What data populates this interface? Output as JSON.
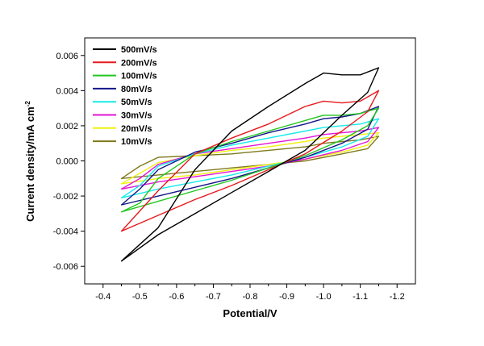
{
  "chart_data": {
    "type": "line",
    "title": "",
    "xlabel": "Potential/V",
    "ylabel": "Current density/mA cm",
    "ylabel_superscript": "-2",
    "xlim": [
      -0.35,
      -1.25
    ],
    "ylim": [
      -0.007,
      0.007
    ],
    "x_ticks": [
      -0.4,
      -0.5,
      -0.6,
      -0.7,
      -0.8,
      -0.9,
      -1.0,
      -1.1,
      -1.2
    ],
    "x_tick_labels": [
      "-0.4",
      "-0.5",
      "-0.6",
      "-0.7",
      "-0.8",
      "-0.9",
      "-1.0",
      "-1.1",
      "-1.2"
    ],
    "y_ticks": [
      -0.006,
      -0.004,
      -0.002,
      0.0,
      0.002,
      0.004,
      0.006
    ],
    "y_tick_labels": [
      "-0.006",
      "-0.004",
      "-0.002",
      "0.000",
      "0.002",
      "0.004",
      "0.006"
    ],
    "grid": false,
    "legend_position": "top-left",
    "series": [
      {
        "name": "500mV/s",
        "color": "#000000",
        "upper": [
          [
            -0.45,
            -0.0057
          ],
          [
            -0.55,
            -0.0038
          ],
          [
            -0.65,
            -0.0005
          ],
          [
            -0.75,
            0.0017
          ],
          [
            -0.85,
            0.0031
          ],
          [
            -0.95,
            0.0044
          ],
          [
            -1.0,
            0.005
          ],
          [
            -1.05,
            0.0049
          ],
          [
            -1.1,
            0.0049
          ],
          [
            -1.15,
            0.0053
          ]
        ],
        "lower": [
          [
            -1.15,
            0.0053
          ],
          [
            -1.12,
            0.0039
          ],
          [
            -1.05,
            0.0026
          ],
          [
            -0.95,
            0.0006
          ],
          [
            -0.85,
            -0.0006
          ],
          [
            -0.75,
            -0.0018
          ],
          [
            -0.65,
            -0.003
          ],
          [
            -0.55,
            -0.0042
          ],
          [
            -0.45,
            -0.0057
          ]
        ]
      },
      {
        "name": "200mV/s",
        "color": "#e8191d",
        "upper": [
          [
            -0.45,
            -0.004
          ],
          [
            -0.55,
            -0.0017
          ],
          [
            -0.65,
            0.0004
          ],
          [
            -0.75,
            0.0013
          ],
          [
            -0.85,
            0.0021
          ],
          [
            -0.95,
            0.0031
          ],
          [
            -1.0,
            0.0034
          ],
          [
            -1.05,
            0.0033
          ],
          [
            -1.1,
            0.0034
          ],
          [
            -1.15,
            0.004
          ]
        ],
        "lower": [
          [
            -1.15,
            0.004
          ],
          [
            -1.12,
            0.0028
          ],
          [
            -1.05,
            0.0017
          ],
          [
            -0.95,
            0.0004
          ],
          [
            -0.85,
            -0.0005
          ],
          [
            -0.75,
            -0.0014
          ],
          [
            -0.65,
            -0.0022
          ],
          [
            -0.55,
            -0.0031
          ],
          [
            -0.45,
            -0.004
          ]
        ]
      },
      {
        "name": "100mV/s",
        "color": "#22c71e",
        "upper": [
          [
            -0.45,
            -0.0029
          ],
          [
            -0.5,
            -0.0024
          ],
          [
            -0.55,
            -0.001
          ],
          [
            -0.65,
            0.0004
          ],
          [
            -0.75,
            0.0011
          ],
          [
            -0.85,
            0.0017
          ],
          [
            -0.95,
            0.0023
          ],
          [
            -1.0,
            0.0026
          ],
          [
            -1.05,
            0.0026
          ],
          [
            -1.1,
            0.0027
          ],
          [
            -1.15,
            0.003
          ]
        ],
        "lower": [
          [
            -1.15,
            0.003
          ],
          [
            -1.12,
            0.002
          ],
          [
            -1.05,
            0.0012
          ],
          [
            -0.95,
            0.0003
          ],
          [
            -0.85,
            -0.0004
          ],
          [
            -0.75,
            -0.0011
          ],
          [
            -0.65,
            -0.0017
          ],
          [
            -0.55,
            -0.0023
          ],
          [
            -0.45,
            -0.0029
          ]
        ]
      },
      {
        "name": "80mV/s",
        "color": "#13168a",
        "upper": [
          [
            -0.45,
            -0.0025
          ],
          [
            -0.5,
            -0.0016
          ],
          [
            -0.55,
            -0.0005
          ],
          [
            -0.65,
            0.0005
          ],
          [
            -0.75,
            0.001
          ],
          [
            -0.85,
            0.0016
          ],
          [
            -0.95,
            0.0021
          ],
          [
            -1.0,
            0.0024
          ],
          [
            -1.05,
            0.0025
          ],
          [
            -1.1,
            0.0027
          ],
          [
            -1.15,
            0.0031
          ]
        ],
        "lower": [
          [
            -1.15,
            0.0031
          ],
          [
            -1.12,
            0.0018
          ],
          [
            -1.05,
            0.001
          ],
          [
            -0.95,
            0.0002
          ],
          [
            -0.85,
            -0.0004
          ],
          [
            -0.75,
            -0.001
          ],
          [
            -0.65,
            -0.0015
          ],
          [
            -0.55,
            -0.002
          ],
          [
            -0.45,
            -0.0025
          ]
        ]
      },
      {
        "name": "50mV/s",
        "color": "#14ecec",
        "upper": [
          [
            -0.45,
            -0.0021
          ],
          [
            -0.5,
            -0.0014
          ],
          [
            -0.55,
            -0.0003
          ],
          [
            -0.65,
            0.0004
          ],
          [
            -0.75,
            0.0009
          ],
          [
            -0.85,
            0.0013
          ],
          [
            -0.95,
            0.0017
          ],
          [
            -1.0,
            0.0019
          ],
          [
            -1.05,
            0.002
          ],
          [
            -1.1,
            0.0021
          ],
          [
            -1.15,
            0.0024
          ]
        ],
        "lower": [
          [
            -1.15,
            0.0024
          ],
          [
            -1.12,
            0.0014
          ],
          [
            -1.05,
            0.0008
          ],
          [
            -0.95,
            0.0002
          ],
          [
            -0.85,
            -0.0003
          ],
          [
            -0.75,
            -0.0008
          ],
          [
            -0.65,
            -0.0012
          ],
          [
            -0.55,
            -0.0016
          ],
          [
            -0.45,
            -0.0021
          ]
        ]
      },
      {
        "name": "30mV/s",
        "color": "#e414d6",
        "upper": [
          [
            -0.45,
            -0.0016
          ],
          [
            -0.5,
            -0.001
          ],
          [
            -0.55,
            -0.0002
          ],
          [
            -0.65,
            0.0004
          ],
          [
            -0.75,
            0.0007
          ],
          [
            -0.85,
            0.001
          ],
          [
            -0.95,
            0.0013
          ],
          [
            -1.0,
            0.0015
          ],
          [
            -1.05,
            0.0016
          ],
          [
            -1.1,
            0.0017
          ],
          [
            -1.15,
            0.0019
          ]
        ],
        "lower": [
          [
            -1.15,
            0.0019
          ],
          [
            -1.12,
            0.0011
          ],
          [
            -1.05,
            0.0006
          ],
          [
            -0.95,
            0.0001
          ],
          [
            -0.85,
            -0.0003
          ],
          [
            -0.75,
            -0.0006
          ],
          [
            -0.65,
            -0.0009
          ],
          [
            -0.55,
            -0.0012
          ],
          [
            -0.45,
            -0.0016
          ]
        ]
      },
      {
        "name": "20mV/s",
        "color": "#f0f011",
        "upper": [
          [
            -0.45,
            -0.0013
          ],
          [
            -0.5,
            -0.0007
          ],
          [
            -0.55,
            -0.0001
          ],
          [
            -0.65,
            0.0003
          ],
          [
            -0.75,
            0.0006
          ],
          [
            -0.85,
            0.0008
          ],
          [
            -0.95,
            0.0011
          ],
          [
            -1.0,
            0.0013
          ],
          [
            -1.05,
            0.0014
          ],
          [
            -1.1,
            0.0015
          ],
          [
            -1.15,
            0.0016
          ]
        ],
        "lower": [
          [
            -1.15,
            0.0016
          ],
          [
            -1.12,
            0.0009
          ],
          [
            -1.05,
            0.0005
          ],
          [
            -0.95,
            0.0001
          ],
          [
            -0.85,
            -0.0002
          ],
          [
            -0.75,
            -0.0005
          ],
          [
            -0.65,
            -0.0008
          ],
          [
            -0.55,
            -0.001
          ],
          [
            -0.45,
            -0.0013
          ]
        ]
      },
      {
        "name": "10mV/s",
        "color": "#7f7a1c",
        "upper": [
          [
            -0.45,
            -0.001
          ],
          [
            -0.5,
            -0.0003
          ],
          [
            -0.55,
            0.0002
          ],
          [
            -0.65,
            0.0003
          ],
          [
            -0.75,
            0.0004
          ],
          [
            -0.85,
            0.0006
          ],
          [
            -0.95,
            0.0008
          ],
          [
            -1.0,
            0.001
          ],
          [
            -1.05,
            0.0011
          ],
          [
            -1.1,
            0.0012
          ],
          [
            -1.15,
            0.0014
          ]
        ],
        "lower": [
          [
            -1.15,
            0.0014
          ],
          [
            -1.12,
            0.0007
          ],
          [
            -1.05,
            0.0004
          ],
          [
            -0.95,
            0.0
          ],
          [
            -0.85,
            -0.0002
          ],
          [
            -0.75,
            -0.0004
          ],
          [
            -0.65,
            -0.0006
          ],
          [
            -0.55,
            -0.0008
          ],
          [
            -0.45,
            -0.001
          ]
        ]
      }
    ]
  }
}
